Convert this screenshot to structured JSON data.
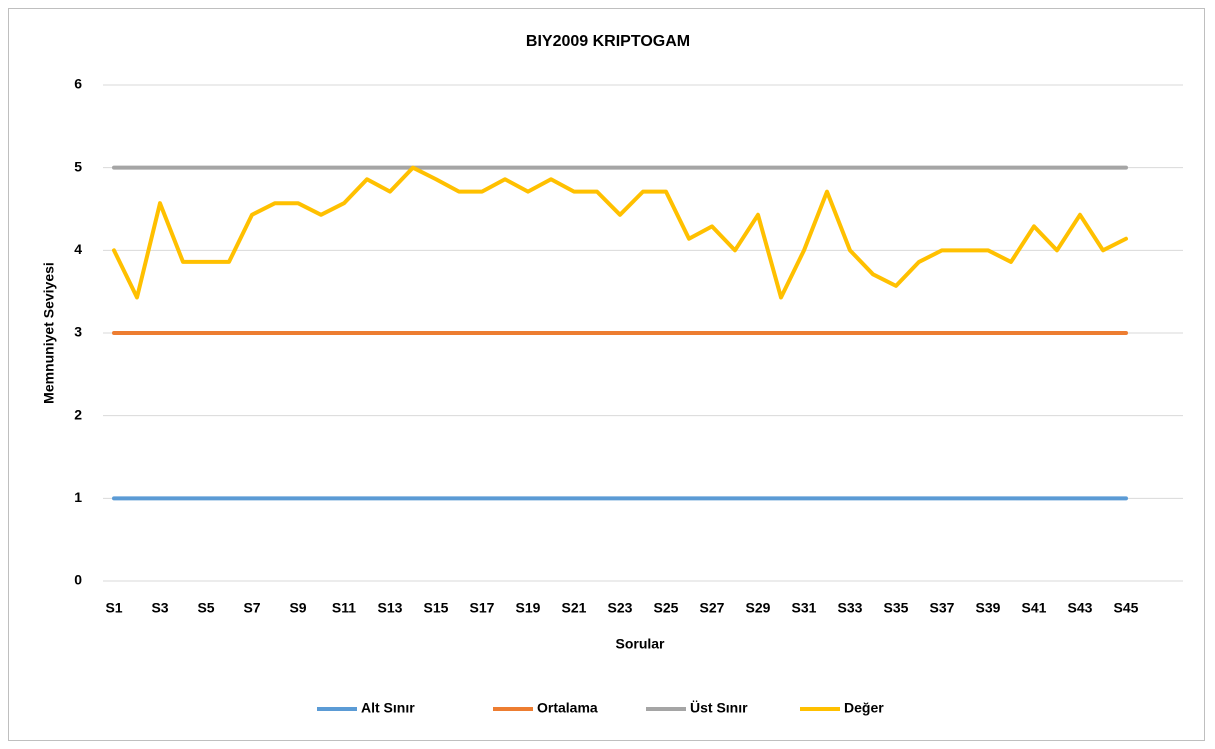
{
  "chart_data": {
    "type": "line",
    "title": "BIY2009 KRIPTOGAM",
    "x_label": "Sorular",
    "y_label": "Memnuniyet Seviyesi",
    "categories": [
      "S1",
      null,
      "S3",
      null,
      "S5",
      null,
      "S7",
      null,
      "S9",
      null,
      "S11",
      null,
      "S13",
      null,
      "S15",
      null,
      "S17",
      null,
      "S19",
      null,
      "S21",
      null,
      "S23",
      null,
      "S25",
      null,
      "S27",
      null,
      "S29",
      null,
      "S31",
      null,
      "S33",
      null,
      "S35",
      null,
      "S37",
      null,
      "S39",
      null,
      "S41",
      null,
      "S43",
      null,
      "S45"
    ],
    "series": [
      {
        "name": "Alt Sınır",
        "color": "#5b9bd5",
        "values": [
          1,
          1,
          1,
          1,
          1,
          1,
          1,
          1,
          1,
          1,
          1,
          1,
          1,
          1,
          1,
          1,
          1,
          1,
          1,
          1,
          1,
          1,
          1,
          1,
          1,
          1,
          1,
          1,
          1,
          1,
          1,
          1,
          1,
          1,
          1,
          1,
          1,
          1,
          1,
          1,
          1,
          1,
          1,
          1,
          1
        ]
      },
      {
        "name": "Ortalama",
        "color": "#ed7d31",
        "values": [
          3,
          3,
          3,
          3,
          3,
          3,
          3,
          3,
          3,
          3,
          3,
          3,
          3,
          3,
          3,
          3,
          3,
          3,
          3,
          3,
          3,
          3,
          3,
          3,
          3,
          3,
          3,
          3,
          3,
          3,
          3,
          3,
          3,
          3,
          3,
          3,
          3,
          3,
          3,
          3,
          3,
          3,
          3,
          3,
          3
        ]
      },
      {
        "name": "Üst Sınır",
        "color": "#a5a5a5",
        "values": [
          5,
          5,
          5,
          5,
          5,
          5,
          5,
          5,
          5,
          5,
          5,
          5,
          5,
          5,
          5,
          5,
          5,
          5,
          5,
          5,
          5,
          5,
          5,
          5,
          5,
          5,
          5,
          5,
          5,
          5,
          5,
          5,
          5,
          5,
          5,
          5,
          5,
          5,
          5,
          5,
          5,
          5,
          5,
          5,
          5
        ]
      },
      {
        "name": "Değer",
        "color": "#ffc000",
        "values": [
          4.0,
          3.43,
          4.57,
          3.86,
          3.86,
          3.86,
          4.43,
          4.57,
          4.57,
          4.43,
          4.57,
          4.86,
          4.71,
          5.0,
          4.86,
          4.71,
          4.71,
          4.86,
          4.71,
          4.86,
          4.71,
          4.71,
          4.43,
          4.71,
          4.71,
          4.14,
          4.29,
          4.0,
          4.43,
          3.43,
          4.0,
          4.71,
          4.0,
          3.71,
          3.57,
          3.86,
          4.0,
          4.0,
          4.0,
          3.86,
          4.29,
          4.0,
          4.43,
          4.0,
          4.14
        ]
      }
    ],
    "ylim": [
      0,
      6
    ],
    "yticks": [
      0,
      1,
      2,
      3,
      4,
      5,
      6
    ],
    "grid": true,
    "legend": "bottom"
  }
}
